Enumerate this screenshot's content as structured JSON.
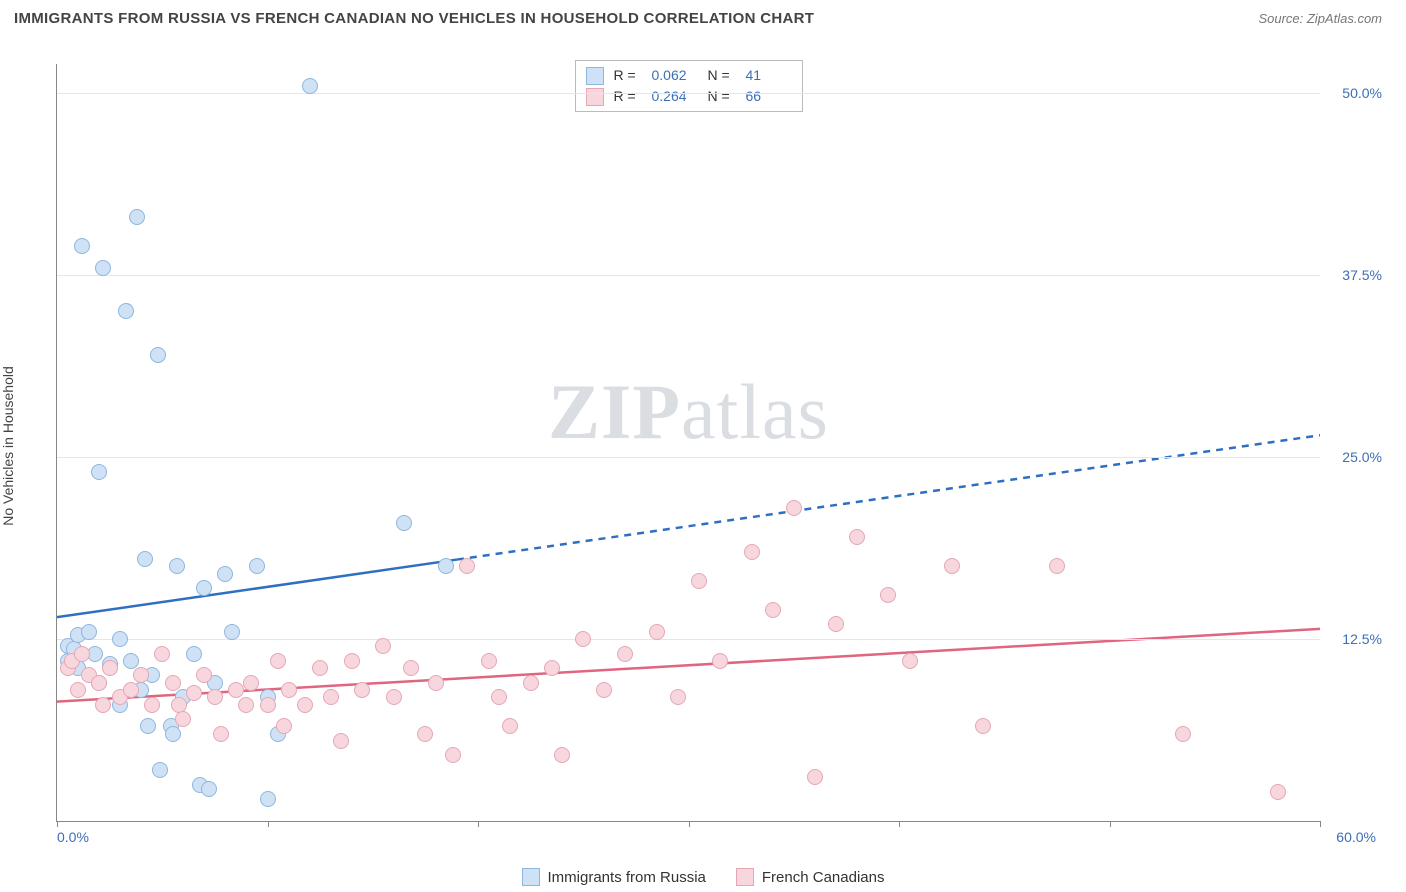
{
  "header": {
    "title": "IMMIGRANTS FROM RUSSIA VS FRENCH CANADIAN NO VEHICLES IN HOUSEHOLD CORRELATION CHART",
    "source": "Source: ZipAtlas.com"
  },
  "watermark": {
    "bold": "ZIP",
    "rest": "atlas"
  },
  "chart": {
    "type": "scatter",
    "y_axis_label": "No Vehicles in Household",
    "xlim": [
      0,
      60
    ],
    "ylim": [
      0,
      52
    ],
    "x_ticks": [
      0,
      10,
      20,
      30,
      40,
      50,
      60
    ],
    "y_gridlines": [
      12.5,
      25.0,
      37.5,
      50.0
    ],
    "y_tick_labels": [
      "12.5%",
      "25.0%",
      "37.5%",
      "50.0%"
    ],
    "x_label_min": "0.0%",
    "x_label_max": "60.0%",
    "background_color": "#ffffff",
    "grid_color": "#e6e6e6",
    "axis_color": "#888888",
    "label_color": "#3b6fb6",
    "series": [
      {
        "name": "Immigrants from Russia",
        "fill": "#cfe1f5",
        "stroke": "#8fb6de",
        "line_color": "#2f6fc2",
        "r": 0.062,
        "n": 41,
        "trend": {
          "x1": 0,
          "y1": 14.0,
          "x2": 60,
          "y2": 26.5,
          "solid_until_x": 19
        },
        "points": [
          [
            0.5,
            11.0
          ],
          [
            0.5,
            12.0
          ],
          [
            0.8,
            11.8
          ],
          [
            1.0,
            10.5
          ],
          [
            1.0,
            12.8
          ],
          [
            1.2,
            39.5
          ],
          [
            1.5,
            13.0
          ],
          [
            1.8,
            11.5
          ],
          [
            2.0,
            24.0
          ],
          [
            2.0,
            9.5
          ],
          [
            2.2,
            38.0
          ],
          [
            2.5,
            10.8
          ],
          [
            3.0,
            12.5
          ],
          [
            3.0,
            8.0
          ],
          [
            3.3,
            35.0
          ],
          [
            3.5,
            11.0
          ],
          [
            3.8,
            41.5
          ],
          [
            4.0,
            9.0
          ],
          [
            4.2,
            18.0
          ],
          [
            4.3,
            6.5
          ],
          [
            4.5,
            10.0
          ],
          [
            4.8,
            32.0
          ],
          [
            4.9,
            3.5
          ],
          [
            5.4,
            6.5
          ],
          [
            5.5,
            6.0
          ],
          [
            5.7,
            17.5
          ],
          [
            6.0,
            8.5
          ],
          [
            6.5,
            11.5
          ],
          [
            6.8,
            2.5
          ],
          [
            7.0,
            16.0
          ],
          [
            7.2,
            2.2
          ],
          [
            7.5,
            9.5
          ],
          [
            8.0,
            17.0
          ],
          [
            8.3,
            13.0
          ],
          [
            9.5,
            17.5
          ],
          [
            10.0,
            1.5
          ],
          [
            10.0,
            8.5
          ],
          [
            10.5,
            6.0
          ],
          [
            12.0,
            50.5
          ],
          [
            16.5,
            20.5
          ],
          [
            18.5,
            17.5
          ]
        ]
      },
      {
        "name": "French Canadians",
        "fill": "#f7d6dd",
        "stroke": "#e6a7b5",
        "line_color": "#e0657f",
        "r": 0.264,
        "n": 66,
        "trend": {
          "x1": 0,
          "y1": 8.2,
          "x2": 60,
          "y2": 13.2,
          "solid_until_x": 60
        },
        "points": [
          [
            0.5,
            10.5
          ],
          [
            0.7,
            11.0
          ],
          [
            1.0,
            9.0
          ],
          [
            1.2,
            11.5
          ],
          [
            1.5,
            10.0
          ],
          [
            2.0,
            9.5
          ],
          [
            2.2,
            8.0
          ],
          [
            2.5,
            10.5
          ],
          [
            3.0,
            8.5
          ],
          [
            3.5,
            9.0
          ],
          [
            4.0,
            10.0
          ],
          [
            4.5,
            8.0
          ],
          [
            5.0,
            11.5
          ],
          [
            5.5,
            9.5
          ],
          [
            5.8,
            8.0
          ],
          [
            6.0,
            7.0
          ],
          [
            6.5,
            8.8
          ],
          [
            7.0,
            10.0
          ],
          [
            7.5,
            8.5
          ],
          [
            7.8,
            6.0
          ],
          [
            8.5,
            9.0
          ],
          [
            9.0,
            8.0
          ],
          [
            9.2,
            9.5
          ],
          [
            10.0,
            8.0
          ],
          [
            10.5,
            11.0
          ],
          [
            10.8,
            6.5
          ],
          [
            11.0,
            9.0
          ],
          [
            11.8,
            8.0
          ],
          [
            12.5,
            10.5
          ],
          [
            13.0,
            8.5
          ],
          [
            13.5,
            5.5
          ],
          [
            14.0,
            11.0
          ],
          [
            14.5,
            9.0
          ],
          [
            15.5,
            12.0
          ],
          [
            16.0,
            8.5
          ],
          [
            16.8,
            10.5
          ],
          [
            17.5,
            6.0
          ],
          [
            18.0,
            9.5
          ],
          [
            18.8,
            4.5
          ],
          [
            19.5,
            17.5
          ],
          [
            20.5,
            11.0
          ],
          [
            21.0,
            8.5
          ],
          [
            21.5,
            6.5
          ],
          [
            22.5,
            9.5
          ],
          [
            23.5,
            10.5
          ],
          [
            24.0,
            4.5
          ],
          [
            25.0,
            12.5
          ],
          [
            26.0,
            9.0
          ],
          [
            27.0,
            11.5
          ],
          [
            28.5,
            13.0
          ],
          [
            29.5,
            8.5
          ],
          [
            30.5,
            16.5
          ],
          [
            31.5,
            11.0
          ],
          [
            33.0,
            18.5
          ],
          [
            34.0,
            14.5
          ],
          [
            35.0,
            21.5
          ],
          [
            36.0,
            3.0
          ],
          [
            37.0,
            13.5
          ],
          [
            38.0,
            19.5
          ],
          [
            39.5,
            15.5
          ],
          [
            40.5,
            11.0
          ],
          [
            42.5,
            17.5
          ],
          [
            44.0,
            6.5
          ],
          [
            47.5,
            17.5
          ],
          [
            53.5,
            6.0
          ],
          [
            58.0,
            2.0
          ]
        ]
      }
    ],
    "legend_top": {
      "r_label": "R =",
      "n_label": "N ="
    },
    "legend_bottom": {
      "items": [
        "Immigrants from Russia",
        "French Canadians"
      ]
    }
  }
}
